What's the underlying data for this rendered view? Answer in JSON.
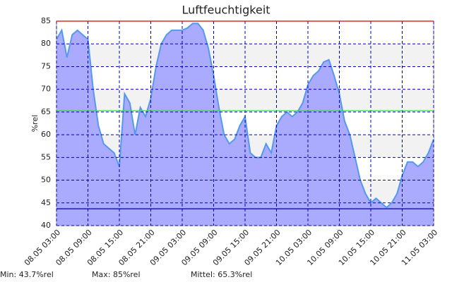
{
  "chart_data": {
    "type": "area",
    "title": "Luftfeuchtigkeit",
    "y_label": "%rel",
    "categories": [
      "08.05 03:00",
      null,
      null,
      null,
      null,
      null,
      "08.05 09:00",
      null,
      null,
      null,
      null,
      null,
      "08.05 15:00",
      null,
      null,
      null,
      null,
      null,
      "08.05 21:00",
      null,
      null,
      null,
      null,
      null,
      "09.05 03:00",
      null,
      null,
      null,
      null,
      null,
      "09.05 09:00",
      null,
      null,
      null,
      null,
      null,
      "09.05 15:00",
      null,
      null,
      null,
      null,
      null,
      "09.05 21:00",
      null,
      null,
      null,
      null,
      null,
      "10.05 03:00",
      null,
      null,
      null,
      null,
      null,
      "10.05 09:00",
      null,
      null,
      null,
      null,
      null,
      "10.05 15:00",
      null,
      null,
      null,
      null,
      null,
      "10.05 21:00",
      null,
      null,
      null,
      null,
      null,
      "11.05 03:00"
    ],
    "values": [
      81,
      83,
      77,
      82,
      83,
      82,
      81,
      70,
      62,
      58,
      57,
      56,
      53,
      69,
      67,
      60,
      66,
      64,
      68,
      75,
      80,
      82,
      83,
      83,
      83,
      83.5,
      84.5,
      84.5,
      83,
      79,
      73,
      66,
      60,
      58,
      59,
      62,
      64,
      56,
      55,
      55,
      58,
      56,
      62,
      64,
      65,
      64,
      65,
      67,
      71,
      73,
      74,
      76,
      76.5,
      73,
      69,
      63,
      60,
      55,
      50,
      47,
      45,
      46,
      45,
      44,
      45,
      47,
      51,
      54,
      54,
      53,
      54,
      56,
      59
    ],
    "fill_color": "#aaaaff",
    "line_color": "#5599ee",
    "ylim": [
      40,
      85
    ],
    "yticks": [
      40,
      45,
      50,
      55,
      60,
      65,
      70,
      75,
      80,
      85
    ],
    "grid": true,
    "bands": true,
    "summary": [
      {
        "label": "Min: 43.7%rel",
        "value": 43.7,
        "color": "#0000aa"
      },
      {
        "label": "Max: 85%rel",
        "value": 85,
        "color": "#dd0000"
      },
      {
        "label": "Mittel: 65.3%rel",
        "value": 65.3,
        "color": "#33dd33"
      }
    ]
  }
}
